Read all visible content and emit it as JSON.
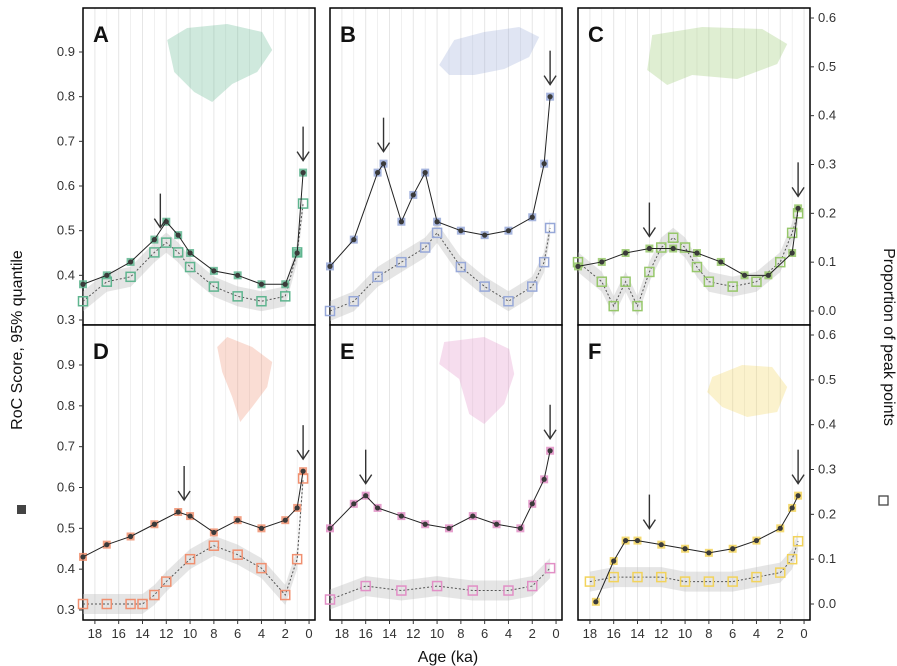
{
  "figure": {
    "left_axis_title": "RoC Score, 95% quantile",
    "right_axis_title": "Proportion of peak points",
    "bottom_axis_title": "Age (ka)"
  },
  "chart_data": [
    {
      "panel": "A",
      "type": "scatter",
      "color": "#5fb58f",
      "region_icon": "north-america-map-icon",
      "x_ticks": [
        18,
        16,
        14,
        12,
        10,
        8,
        6,
        4,
        2,
        0
      ],
      "y_ticks": [
        0.3,
        0.4,
        0.5,
        0.6,
        0.7,
        0.8,
        0.9
      ],
      "xlim": [
        19,
        -0.5
      ],
      "ylim": [
        0.29,
        0.97
      ],
      "roc_score": {
        "x": [
          19,
          17,
          15,
          13,
          12,
          11,
          10,
          8,
          6,
          4,
          2,
          1,
          0.5
        ],
        "y": [
          0.38,
          0.4,
          0.43,
          0.48,
          0.52,
          0.49,
          0.45,
          0.41,
          0.4,
          0.38,
          0.38,
          0.45,
          0.63
        ]
      },
      "peak_proportion": {
        "x": [
          19,
          17,
          15,
          13,
          12,
          11,
          10,
          8,
          6,
          4,
          2,
          1,
          0.5
        ],
        "y": [
          0.02,
          0.06,
          0.07,
          0.12,
          0.14,
          0.12,
          0.09,
          0.05,
          0.03,
          0.02,
          0.03,
          0.12,
          0.22
        ]
      },
      "arrows": [
        12.5,
        0.5
      ]
    },
    {
      "panel": "B",
      "type": "scatter",
      "color": "#97a8d8",
      "region_icon": "europe-map-icon",
      "x_ticks": [
        18,
        16,
        14,
        12,
        10,
        8,
        6,
        4,
        2,
        0
      ],
      "y_ticks": [
        0.3,
        0.4,
        0.5,
        0.6,
        0.7,
        0.8,
        0.9
      ],
      "xlim": [
        19,
        -0.5
      ],
      "ylim": [
        0.29,
        0.97
      ],
      "roc_score": {
        "x": [
          19,
          17,
          15,
          14.5,
          13,
          12,
          11,
          10,
          8,
          6,
          4,
          2,
          1,
          0.5
        ],
        "y": [
          0.42,
          0.48,
          0.63,
          0.65,
          0.52,
          0.58,
          0.63,
          0.52,
          0.5,
          0.49,
          0.5,
          0.53,
          0.65,
          0.8
        ]
      },
      "peak_proportion": {
        "x": [
          19,
          17,
          15,
          13,
          11,
          10,
          8,
          6,
          4,
          2,
          1,
          0.5
        ],
        "y": [
          0.0,
          0.02,
          0.07,
          0.1,
          0.13,
          0.16,
          0.09,
          0.05,
          0.02,
          0.05,
          0.1,
          0.17
        ]
      },
      "arrows": [
        14.5,
        0.5
      ]
    },
    {
      "panel": "C",
      "type": "scatter",
      "color": "#96c76a",
      "region_icon": "asia-map-icon",
      "x_ticks": [
        18,
        16,
        14,
        12,
        10,
        8,
        6,
        4,
        2,
        0
      ],
      "y_ticks": [
        0.3,
        0.4,
        0.5,
        0.6,
        0.7,
        0.8,
        0.9
      ],
      "xlim": [
        19,
        -0.5
      ],
      "ylim": [
        0.29,
        0.97
      ],
      "roc_score": {
        "x": [
          19,
          17,
          15,
          13,
          11,
          9,
          7,
          5,
          3,
          1,
          0.5
        ],
        "y": [
          0.42,
          0.43,
          0.45,
          0.46,
          0.46,
          0.45,
          0.43,
          0.4,
          0.4,
          0.45,
          0.55
        ]
      },
      "peak_proportion": {
        "x": [
          19,
          17,
          16,
          15,
          14,
          13,
          12,
          11,
          10,
          9,
          8,
          6,
          4,
          2,
          1,
          0.5
        ],
        "y": [
          0.1,
          0.06,
          0.01,
          0.06,
          0.01,
          0.08,
          0.13,
          0.15,
          0.13,
          0.09,
          0.06,
          0.05,
          0.06,
          0.1,
          0.16,
          0.2
        ]
      },
      "arrows": [
        13,
        0.5
      ]
    },
    {
      "panel": "D",
      "type": "scatter",
      "color": "#f09070",
      "region_icon": "south-america-map-icon",
      "x_ticks": [
        18,
        16,
        14,
        12,
        10,
        8,
        6,
        4,
        2,
        0
      ],
      "y_ticks": [
        0.3,
        0.4,
        0.5,
        0.6,
        0.7,
        0.8,
        0.9
      ],
      "xlim": [
        19,
        -0.5
      ],
      "ylim": [
        0.29,
        0.97
      ],
      "roc_score": {
        "x": [
          19,
          17,
          15,
          13,
          11,
          10,
          8,
          6,
          4,
          2,
          1,
          0.5
        ],
        "y": [
          0.43,
          0.46,
          0.48,
          0.51,
          0.54,
          0.53,
          0.49,
          0.52,
          0.5,
          0.52,
          0.55,
          0.64
        ]
      },
      "peak_proportion": {
        "x": [
          19,
          17,
          15,
          14,
          13,
          12,
          10,
          8,
          6,
          4,
          2,
          1,
          0.5
        ],
        "y": [
          0.0,
          0.0,
          0.0,
          0.0,
          0.02,
          0.05,
          0.1,
          0.13,
          0.11,
          0.08,
          0.02,
          0.1,
          0.28
        ]
      },
      "arrows": [
        10.5,
        0.5
      ]
    },
    {
      "panel": "E",
      "type": "scatter",
      "color": "#e28fc6",
      "region_icon": "africa-map-icon",
      "x_ticks": [
        18,
        16,
        14,
        12,
        10,
        8,
        6,
        4,
        2,
        0
      ],
      "y_ticks": [
        0.3,
        0.4,
        0.5,
        0.6,
        0.7,
        0.8,
        0.9
      ],
      "xlim": [
        19,
        -0.5
      ],
      "ylim": [
        0.29,
        0.97
      ],
      "roc_score": {
        "x": [
          19,
          17,
          16,
          15,
          13,
          11,
          9,
          7,
          5,
          3,
          2,
          1,
          0.5
        ],
        "y": [
          0.5,
          0.56,
          0.58,
          0.55,
          0.53,
          0.51,
          0.5,
          0.53,
          0.51,
          0.5,
          0.56,
          0.62,
          0.69
        ]
      },
      "peak_proportion": {
        "x": [
          19,
          16,
          13,
          10,
          7,
          4,
          2,
          0.5
        ],
        "y": [
          0.01,
          0.04,
          0.03,
          0.04,
          0.03,
          0.03,
          0.04,
          0.08
        ]
      },
      "arrows": [
        16,
        0.5
      ]
    },
    {
      "panel": "F",
      "type": "scatter",
      "color": "#f2d35b",
      "region_icon": "australia-map-icon",
      "x_ticks": [
        18,
        16,
        14,
        12,
        10,
        8,
        6,
        4,
        2,
        0
      ],
      "y_ticks": [
        0.3,
        0.4,
        0.5,
        0.6,
        0.7,
        0.8,
        0.9
      ],
      "xlim": [
        19,
        -0.5
      ],
      "ylim": [
        0.29,
        0.97
      ],
      "roc_score": {
        "x": [
          17.5,
          16,
          15,
          14,
          12,
          10,
          8,
          6,
          4,
          2,
          1,
          0.5
        ],
        "y": [
          0.32,
          0.42,
          0.47,
          0.47,
          0.46,
          0.45,
          0.44,
          0.45,
          0.47,
          0.5,
          0.55,
          0.58
        ]
      },
      "peak_proportion": {
        "x": [
          18,
          16,
          14,
          12,
          10,
          8,
          6,
          4,
          2,
          1,
          0.5
        ],
        "y": [
          0.05,
          0.06,
          0.06,
          0.06,
          0.05,
          0.05,
          0.05,
          0.06,
          0.07,
          0.1,
          0.14
        ]
      },
      "arrows": [
        13,
        0.5
      ]
    }
  ]
}
